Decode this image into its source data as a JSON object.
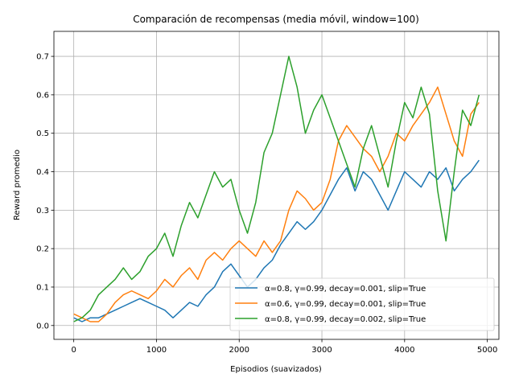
{
  "chart_data": {
    "type": "line",
    "title": "Comparación de recompensas (media móvil, window=100)",
    "xlabel": "Episodios (suavizados)",
    "ylabel": "Reward promedio",
    "xlim": [
      -240,
      5140
    ],
    "ylim": [
      -0.036,
      0.765
    ],
    "xticks": [
      0,
      1000,
      2000,
      3000,
      4000,
      5000
    ],
    "xtick_labels": [
      "0",
      "1000",
      "2000",
      "3000",
      "4000",
      "5000"
    ],
    "yticks": [
      0.0,
      0.1,
      0.2,
      0.3,
      0.4,
      0.5,
      0.6,
      0.7
    ],
    "ytick_labels": [
      "0.0",
      "0.1",
      "0.2",
      "0.3",
      "0.4",
      "0.5",
      "0.6",
      "0.7"
    ],
    "grid": true,
    "legend_position": "lower-right",
    "series": [
      {
        "name": "α=0.8, γ=0.99, decay=0.001, slip=True",
        "color": "#1f77b4",
        "x": [
          0,
          100,
          200,
          300,
          400,
          500,
          600,
          700,
          800,
          900,
          1000,
          1100,
          1200,
          1300,
          1400,
          1500,
          1600,
          1700,
          1800,
          1900,
          2000,
          2100,
          2200,
          2300,
          2400,
          2500,
          2600,
          2700,
          2800,
          2900,
          3000,
          3100,
          3200,
          3300,
          3400,
          3500,
          3600,
          3700,
          3800,
          3900,
          4000,
          4100,
          4200,
          4300,
          4400,
          4500,
          4600,
          4700,
          4800,
          4900
        ],
        "y": [
          0.02,
          0.01,
          0.02,
          0.02,
          0.03,
          0.04,
          0.05,
          0.06,
          0.07,
          0.06,
          0.05,
          0.04,
          0.02,
          0.04,
          0.06,
          0.05,
          0.08,
          0.1,
          0.14,
          0.16,
          0.13,
          0.1,
          0.12,
          0.15,
          0.17,
          0.21,
          0.24,
          0.27,
          0.25,
          0.27,
          0.3,
          0.34,
          0.38,
          0.41,
          0.35,
          0.4,
          0.38,
          0.34,
          0.3,
          0.35,
          0.4,
          0.38,
          0.36,
          0.4,
          0.38,
          0.41,
          0.35,
          0.38,
          0.4,
          0.43
        ]
      },
      {
        "name": "α=0.6, γ=0.99, decay=0.001, slip=True",
        "color": "#ff7f0e",
        "x": [
          0,
          100,
          200,
          300,
          400,
          500,
          600,
          700,
          800,
          900,
          1000,
          1100,
          1200,
          1300,
          1400,
          1500,
          1600,
          1700,
          1800,
          1900,
          2000,
          2100,
          2200,
          2300,
          2400,
          2500,
          2600,
          2700,
          2800,
          2900,
          3000,
          3100,
          3200,
          3300,
          3400,
          3500,
          3600,
          3700,
          3800,
          3900,
          4000,
          4100,
          4200,
          4300,
          4400,
          4500,
          4600,
          4700,
          4800,
          4900
        ],
        "y": [
          0.03,
          0.02,
          0.01,
          0.01,
          0.03,
          0.06,
          0.08,
          0.09,
          0.08,
          0.07,
          0.09,
          0.12,
          0.1,
          0.13,
          0.15,
          0.12,
          0.17,
          0.19,
          0.17,
          0.2,
          0.22,
          0.2,
          0.18,
          0.22,
          0.19,
          0.22,
          0.3,
          0.35,
          0.33,
          0.3,
          0.32,
          0.38,
          0.48,
          0.52,
          0.49,
          0.46,
          0.44,
          0.4,
          0.44,
          0.5,
          0.48,
          0.52,
          0.55,
          0.58,
          0.62,
          0.55,
          0.48,
          0.44,
          0.55,
          0.58
        ]
      },
      {
        "name": "α=0.8, γ=0.99, decay=0.002, slip=True",
        "color": "#2ca02c",
        "x": [
          0,
          100,
          200,
          300,
          400,
          500,
          600,
          700,
          800,
          900,
          1000,
          1100,
          1200,
          1300,
          1400,
          1500,
          1600,
          1700,
          1800,
          1900,
          2000,
          2100,
          2200,
          2300,
          2400,
          2500,
          2600,
          2700,
          2800,
          2900,
          3000,
          3100,
          3200,
          3300,
          3400,
          3500,
          3600,
          3700,
          3800,
          3900,
          4000,
          4100,
          4200,
          4300,
          4400,
          4500,
          4600,
          4700,
          4800,
          4900
        ],
        "y": [
          0.01,
          0.02,
          0.04,
          0.08,
          0.1,
          0.12,
          0.15,
          0.12,
          0.14,
          0.18,
          0.2,
          0.24,
          0.18,
          0.26,
          0.32,
          0.28,
          0.34,
          0.4,
          0.36,
          0.38,
          0.3,
          0.24,
          0.32,
          0.45,
          0.5,
          0.6,
          0.7,
          0.62,
          0.5,
          0.56,
          0.6,
          0.54,
          0.48,
          0.42,
          0.36,
          0.46,
          0.52,
          0.44,
          0.36,
          0.48,
          0.58,
          0.54,
          0.62,
          0.55,
          0.35,
          0.22,
          0.4,
          0.56,
          0.52,
          0.6
        ]
      }
    ]
  }
}
